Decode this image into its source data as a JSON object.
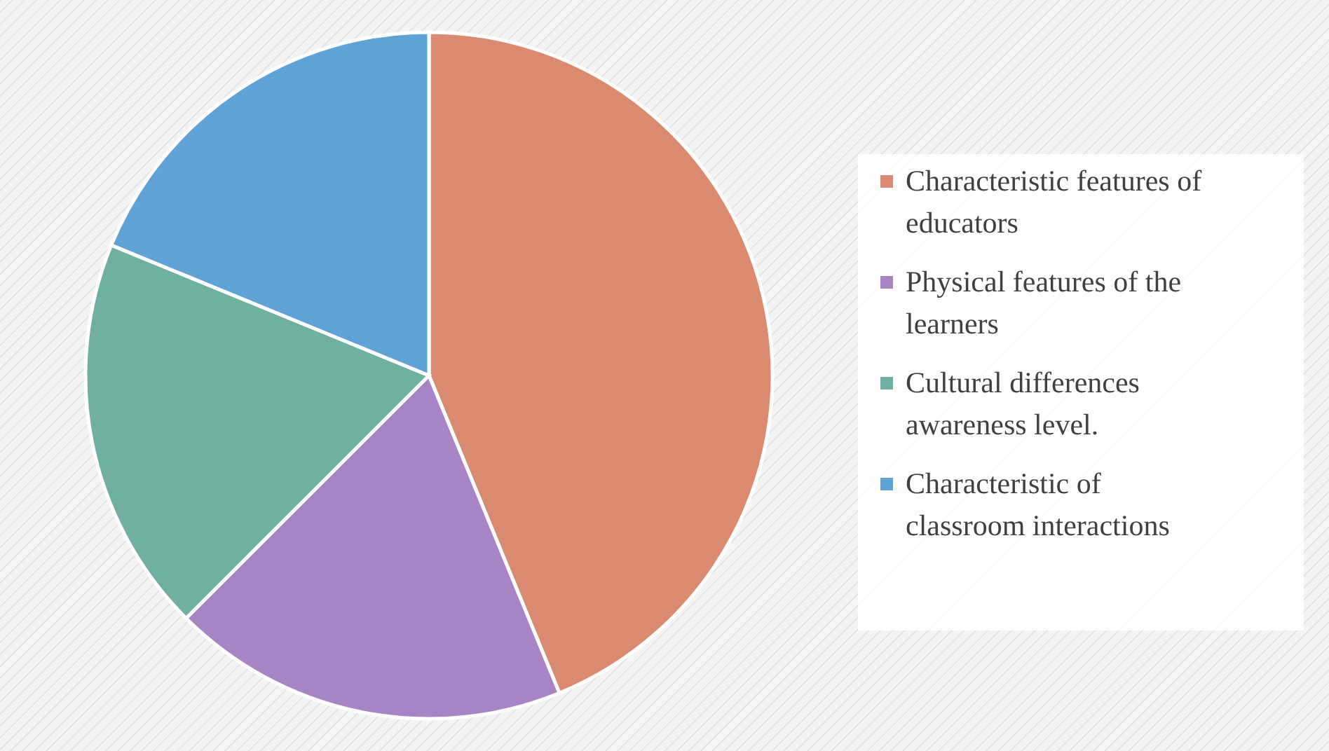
{
  "chart_data": {
    "type": "pie",
    "categories": [
      "Characteristic features of educators",
      "Physical features of the learners",
      "Cultural differences awareness level.",
      "Characteristic of classroom interactions"
    ],
    "values": [
      43.8,
      18.7,
      18.7,
      18.8
    ],
    "colors": [
      "#d98a70",
      "#a784c4",
      "#6fb0a0",
      "#5fa3d6"
    ],
    "legend": "right"
  }
}
